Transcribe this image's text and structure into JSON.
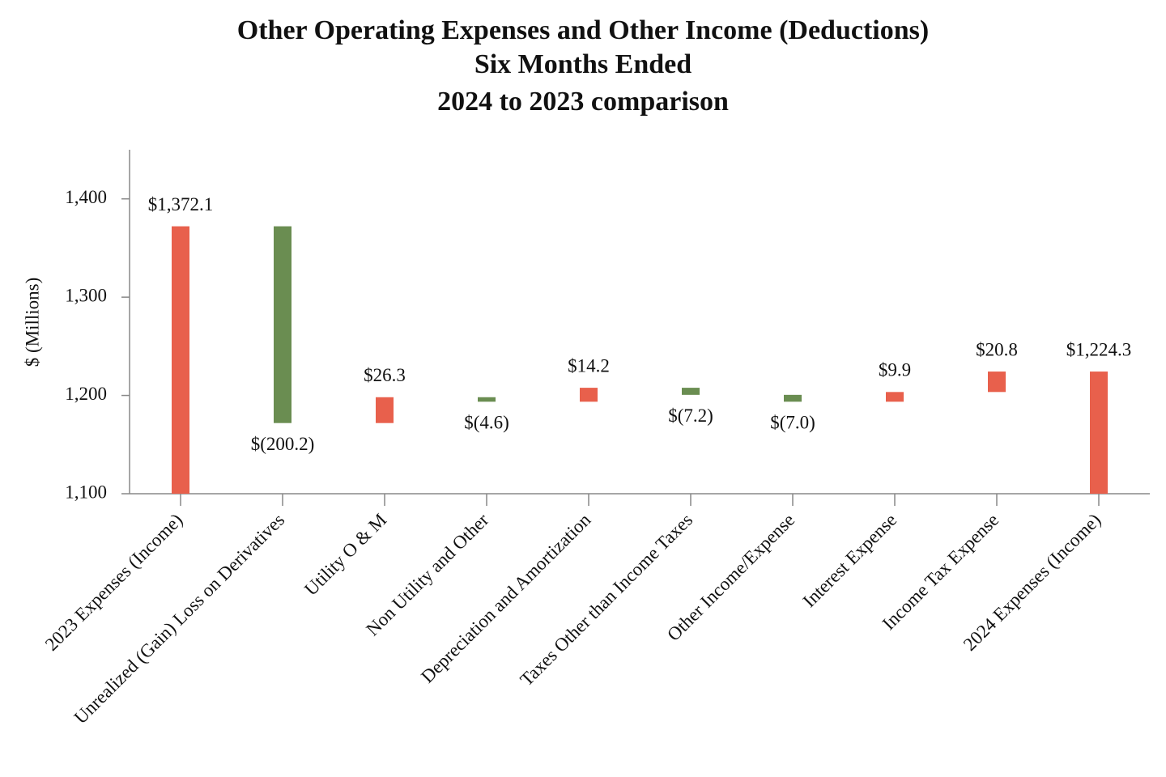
{
  "chart_data": {
    "type": "waterfall",
    "title": [
      "Other Operating Expenses and Other Income (Deductions)",
      "Six Months Ended",
      "2024 to 2023 comparison"
    ],
    "y_label": "$ (Millions)",
    "categories": [
      "2023 Expenses (Income)",
      "Unrealized (Gain) Loss on Derivatives",
      "Utility O & M",
      "Non Utility and Other",
      "Depreciation and Amortization",
      "Taxes Other than Income Taxes",
      "Other Income/Expense",
      "Interest Expense",
      "Income Tax Expense",
      "2024 Expenses (Income)"
    ],
    "values": [
      1372.1,
      -200.2,
      26.3,
      -4.6,
      14.2,
      -7.2,
      -7.0,
      9.9,
      20.8,
      1224.3
    ],
    "value_labels": [
      "$1,372.1",
      "$(200.2)",
      "$26.3",
      "$(4.6)",
      "$14.2",
      "$(7.2)",
      "$(7.0)",
      "$9.9",
      "$20.8",
      "$1,224.3"
    ],
    "measure": [
      "total",
      "relative",
      "relative",
      "relative",
      "relative",
      "relative",
      "relative",
      "relative",
      "relative",
      "total"
    ],
    "increase_color": "#e8604c",
    "decrease_color": "#6a8d51",
    "total_color": "#e8604c",
    "ylim": [
      1100,
      1450
    ],
    "yticks": [
      {
        "value": 1100,
        "label": "1,100"
      },
      {
        "value": 1200,
        "label": "1,200"
      },
      {
        "value": 1300,
        "label": "1,300"
      },
      {
        "value": 1400,
        "label": "1,400"
      }
    ],
    "grid": false
  }
}
